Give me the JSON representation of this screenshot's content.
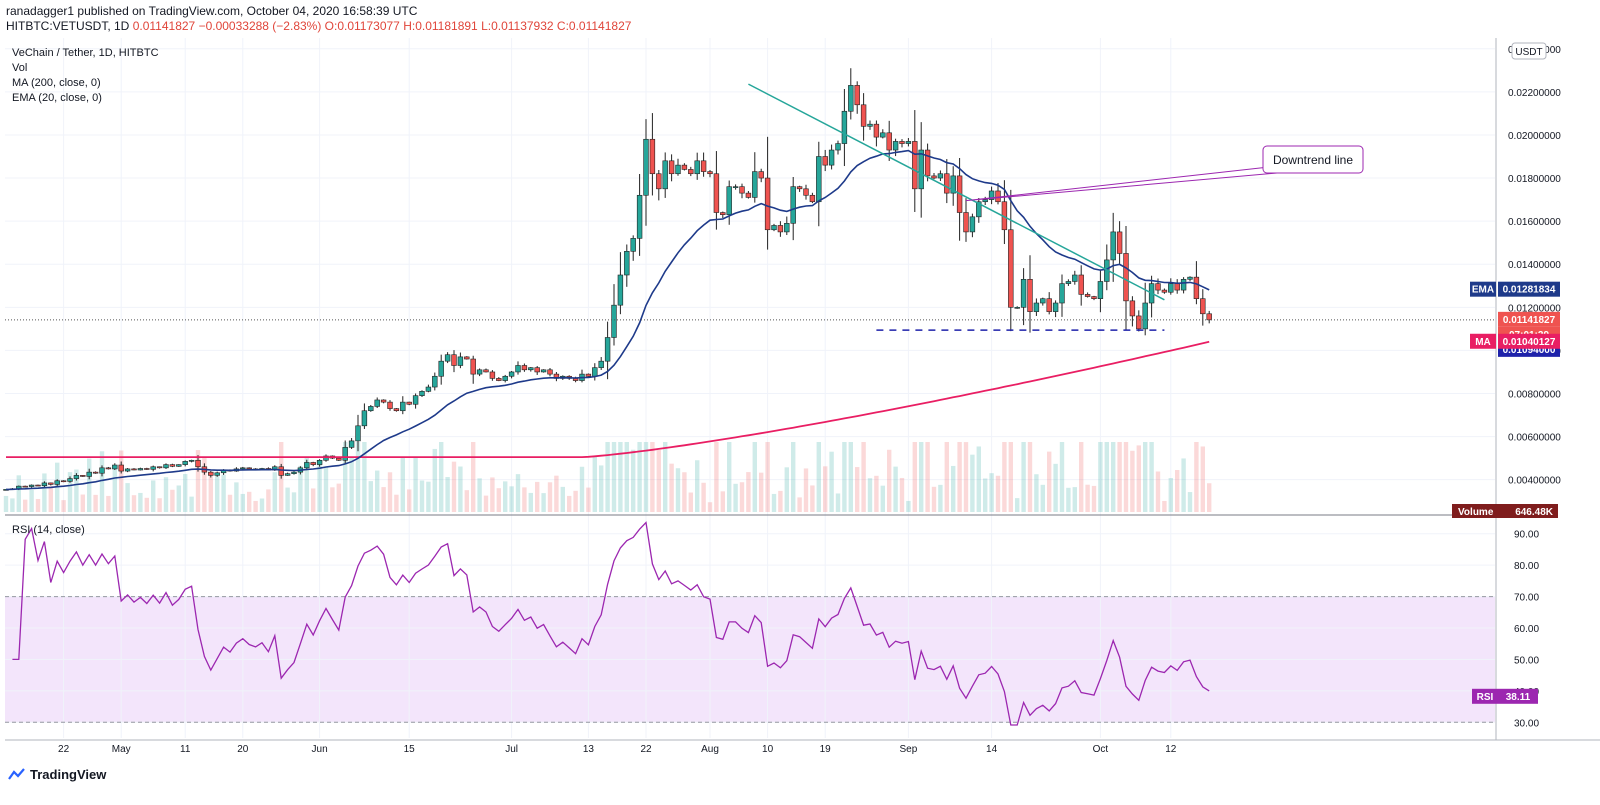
{
  "header": {
    "published": "ranadagger1 published on TradingView.com, October 04, 2020 16:58:39 UTC",
    "symbol": "HITBTC:VETUSDT, 1D",
    "last": "0.01141827",
    "change": "−0.00033288 (−2.83%)",
    "o": "O:0.01173077",
    "h": "H:0.01181891",
    "l": "L:0.01137932",
    "c": "C:0.01141827"
  },
  "legend": {
    "title": "VeChain / Tether, 1D, HITBTC",
    "vol": "Vol",
    "ma": "MA (200, close, 0)",
    "ema": "EMA (20, close, 0)"
  },
  "rsi_legend": "RSI (14, close)",
  "annotation": "Downtrend line",
  "footer": {
    "brand": "TradingView"
  },
  "colors": {
    "up": "#26a69a",
    "down": "#ef5350",
    "ema": "#1e3a8a",
    "ma": "#e91e63",
    "trend": "#26a69a",
    "support": "#1e22aa",
    "rsi": "#9c27b0",
    "rsi_band": "#f3e5fb"
  },
  "chart_data": [
    {
      "type": "candlestick",
      "title": "VeChain / Tether, 1D, HITBTC",
      "unit": "USDT",
      "y_ticks": [
        0.004,
        0.006,
        0.008,
        0.01,
        0.012,
        0.014,
        0.016,
        0.018,
        0.02,
        0.022,
        0.024
      ],
      "y_tick_labels": [
        "0.00400000",
        "0.00600000",
        "0.00800000",
        "0.01000000",
        "0.01200000",
        "0.01400000",
        "0.01600000",
        "0.01800000",
        "0.02000000",
        "0.02200000",
        "0.02400000"
      ],
      "ylim": [
        0.0025,
        0.0245
      ],
      "x_labels": [
        "22",
        "May",
        "11",
        "20",
        "Jun",
        "15",
        "Jul",
        "13",
        "22",
        "Aug",
        "10",
        "19",
        "Sep",
        "14",
        "Oct",
        "12"
      ],
      "x_label_dates": [
        "2020-04-22",
        "2020-05-01",
        "2020-05-11",
        "2020-05-20",
        "2020-06-01",
        "2020-06-15",
        "2020-07-01",
        "2020-07-13",
        "2020-07-22",
        "2020-08-01",
        "2020-08-10",
        "2020-08-19",
        "2020-09-01",
        "2020-09-14",
        "2020-10-01",
        "2020-10-12"
      ],
      "start_date": "2020-04-13",
      "close": [
        0.00355,
        0.00358,
        0.0037,
        0.00368,
        0.00375,
        0.00372,
        0.00385,
        0.00378,
        0.00395,
        0.00392,
        0.00405,
        0.0042,
        0.00415,
        0.00435,
        0.0043,
        0.00455,
        0.0045,
        0.00468,
        0.0044,
        0.0045,
        0.00445,
        0.00452,
        0.00448,
        0.0046,
        0.00455,
        0.0047,
        0.00462,
        0.0047,
        0.00485,
        0.0049,
        0.0046,
        0.00435,
        0.0042,
        0.00432,
        0.00445,
        0.0044,
        0.0045,
        0.00455,
        0.0045,
        0.00448,
        0.00452,
        0.00445,
        0.0046,
        0.0042,
        0.00428,
        0.00435,
        0.00455,
        0.0048,
        0.0047,
        0.0049,
        0.0051,
        0.005,
        0.0049,
        0.0055,
        0.0058,
        0.0065,
        0.0072,
        0.0074,
        0.0077,
        0.0076,
        0.0073,
        0.0072,
        0.0076,
        0.0075,
        0.0079,
        0.0081,
        0.0083,
        0.0088,
        0.0095,
        0.0098,
        0.0093,
        0.0097,
        0.0096,
        0.0089,
        0.0091,
        0.009,
        0.0087,
        0.0086,
        0.0088,
        0.009,
        0.0093,
        0.0091,
        0.0092,
        0.009,
        0.0091,
        0.0089,
        0.0087,
        0.0088,
        0.0087,
        0.0086,
        0.0089,
        0.0088,
        0.0092,
        0.0095,
        0.0106,
        0.0121,
        0.0135,
        0.0146,
        0.0152,
        0.0172,
        0.0198,
        0.0182,
        0.0175,
        0.0188,
        0.0182,
        0.0186,
        0.0184,
        0.0182,
        0.0188,
        0.0183,
        0.0182,
        0.0164,
        0.0163,
        0.0176,
        0.0176,
        0.0173,
        0.0171,
        0.0183,
        0.018,
        0.0156,
        0.0158,
        0.0155,
        0.0159,
        0.0176,
        0.0175,
        0.0172,
        0.0169,
        0.019,
        0.0186,
        0.0193,
        0.0196,
        0.0211,
        0.0223,
        0.0214,
        0.0204,
        0.0205,
        0.0199,
        0.0201,
        0.0193,
        0.0197,
        0.0196,
        0.0197,
        0.0175,
        0.0193,
        0.0181,
        0.018,
        0.0182,
        0.0173,
        0.0181,
        0.0164,
        0.0155,
        0.0162,
        0.0169,
        0.017,
        0.0174,
        0.0169,
        0.0156,
        0.012,
        0.012,
        0.0133,
        0.0118,
        0.0122,
        0.0124,
        0.0118,
        0.0122,
        0.0131,
        0.0132,
        0.0135,
        0.0126,
        0.0125,
        0.0124,
        0.0132,
        0.0142,
        0.0155,
        0.0145,
        0.0123,
        0.0116,
        0.011,
        0.0122,
        0.0131,
        0.0128,
        0.0127,
        0.0131,
        0.0128,
        0.0133,
        0.0134,
        0.0124,
        0.0117,
        0.01141827
      ],
      "ema20_last": 0.01281834,
      "ma200_last": 0.0104,
      "price_tags": [
        {
          "label": "EMA",
          "value": "0.01281834",
          "price": 0.01281834
        },
        {
          "label": "",
          "value": "0.01141827",
          "price": 0.01141827
        },
        {
          "label": "",
          "value": "07:01:29",
          "price": 0.0107
        },
        {
          "label": "",
          "value": "0.01094000",
          "price": 0.01094
        },
        {
          "label": "MA",
          "value": "0.01040127",
          "price": 0.01040127
        }
      ],
      "support_level": 0.01094,
      "trendline": {
        "from": {
          "date": "2020-08-07",
          "price": 0.02236
        },
        "to": {
          "date": "2020-10-11",
          "price": 0.01235
        }
      },
      "volume_tag": {
        "label": "Volume",
        "value": "646.48K"
      }
    },
    {
      "type": "line",
      "title": "RSI (14, close)",
      "ylim": [
        25,
        95
      ],
      "y_ticks": [
        30,
        40,
        50,
        60,
        70,
        80,
        90
      ],
      "y_tick_labels": [
        "30.00",
        "40.00",
        "50.00",
        "60.00",
        "70.00",
        "80.00",
        "90.00"
      ],
      "band": [
        30,
        70
      ],
      "last_label": "RSI",
      "last_value": "38.11"
    }
  ]
}
